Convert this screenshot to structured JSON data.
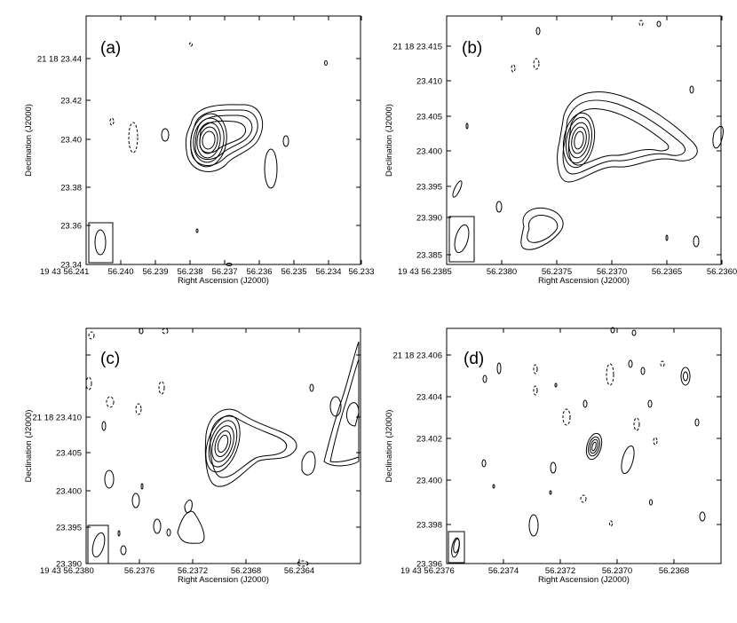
{
  "figure": {
    "panels": [
      {
        "id": "a",
        "letter": "(a)",
        "xlabel": "Right Ascension (J2000)",
        "ylabel": "Declination (J2000)",
        "xticks": [
          "19 43 56.241",
          "56.240",
          "56.239",
          "56.238",
          "56.237",
          "56.236",
          "56.235",
          "56.234",
          "56.233"
        ],
        "yticks": [
          "23.34",
          "23.36",
          "23.38",
          "23.40",
          "23.42",
          "21 18 23.44"
        ]
      },
      {
        "id": "b",
        "letter": "(b)",
        "xlabel": "Right Ascension (J2000)",
        "ylabel": "Declination (J2000)",
        "xticks": [
          "19 43 56.2385",
          "56.2380",
          "56.2375",
          "56.2370",
          "56.2365",
          "56.2360"
        ],
        "yticks": [
          "23.385",
          "23.390",
          "23.395",
          "23.400",
          "23.405",
          "23.410",
          "21 18 23.415"
        ]
      },
      {
        "id": "c",
        "letter": "(c)",
        "xlabel": "Right Ascension (J2000)",
        "ylabel": "Declination (J2000)",
        "xticks": [
          "19 43 56.2380",
          "56.2376",
          "56.2372",
          "56.2368",
          "56.2364"
        ],
        "yticks": [
          "23.390",
          "23.395",
          "23.400",
          "23.405",
          "21 18 23.410"
        ]
      },
      {
        "id": "d",
        "letter": "(d)",
        "xlabel": "Right Ascension (J2000)",
        "ylabel": "Declination (J2000)",
        "xticks": [
          "19 43 56.2376",
          "56.2374",
          "56.2372",
          "56.2370",
          "56.2368"
        ],
        "yticks": [
          "23.396",
          "23.398",
          "23.400",
          "23.402",
          "23.404",
          "21 18 23.406"
        ]
      }
    ]
  }
}
